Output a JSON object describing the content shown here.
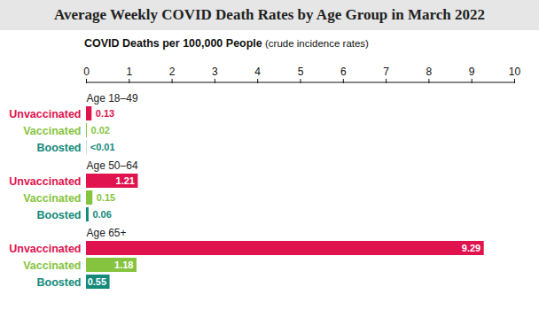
{
  "chart_data": {
    "type": "bar",
    "orientation": "horizontal",
    "title": "Average Weekly COVID Death Rates by Age Group in March 2022",
    "x_label": "COVID Deaths per 100,000 People (crude incidence rates)",
    "categories": [
      "Age 18–49",
      "Age 50–64",
      "Age 65+"
    ],
    "series": [
      {
        "name": "Unvaccinated",
        "color": "#e0134f",
        "values": [
          0.13,
          1.21,
          9.29
        ]
      },
      {
        "name": "Vaccinated",
        "color": "#86c440",
        "values": [
          0.02,
          0.15,
          1.18
        ]
      },
      {
        "name": "Boosted",
        "color": "#138a7a",
        "values": [
          0.005,
          0.06,
          0.55
        ],
        "value_labels": [
          "<0.01",
          "0.06",
          "0.55"
        ]
      }
    ],
    "xlim": [
      0,
      10
    ],
    "xticks": [
      0,
      1,
      2,
      3,
      4,
      5,
      6,
      7,
      8,
      9,
      10
    ],
    "data_labels": true,
    "grid": false
  }
}
